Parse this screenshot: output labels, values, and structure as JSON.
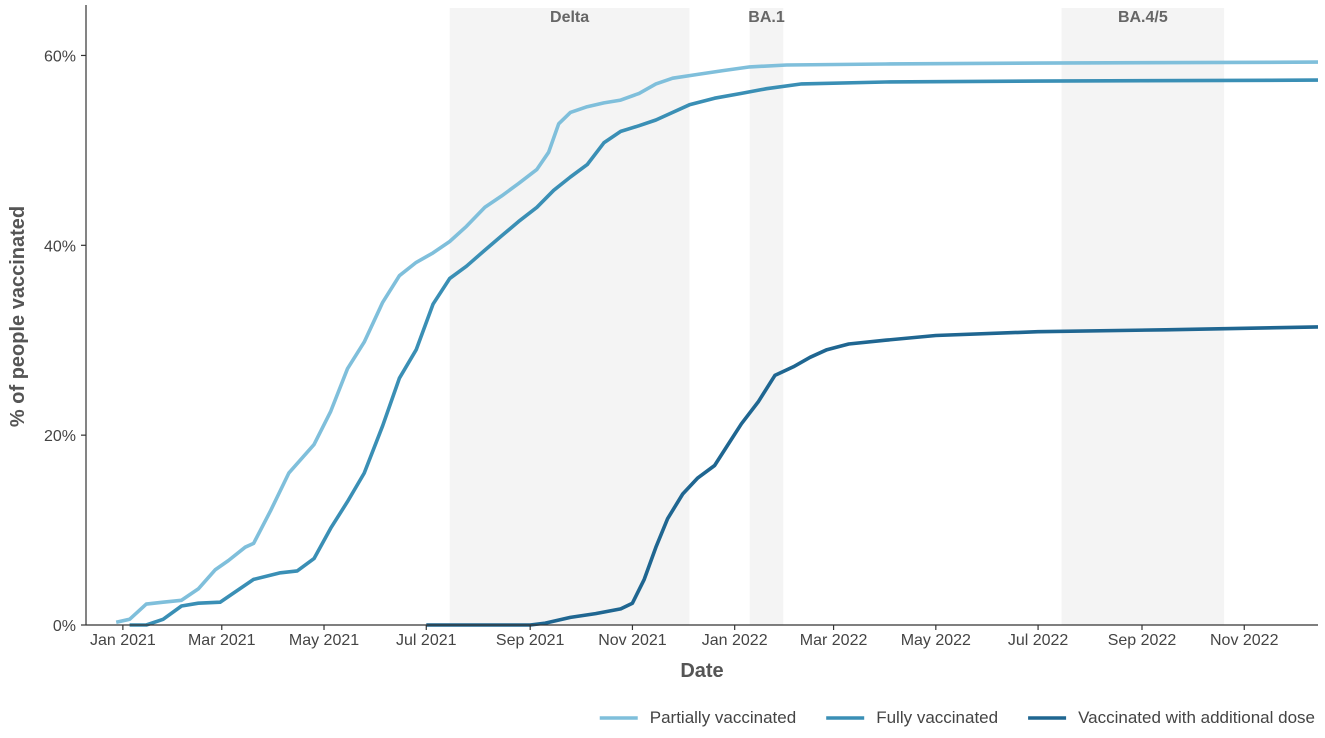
{
  "chart_data": {
    "type": "line",
    "title": "",
    "xlabel": "Date",
    "ylabel": "% of people vaccinated",
    "ylim": [
      0,
      65
    ],
    "xlim": [
      "2020-12-10",
      "2022-12-15"
    ],
    "grid": false,
    "legend_position": "bottom-right",
    "x_ticks": [
      {
        "date": "2021-01-01",
        "label": "Jan 2021"
      },
      {
        "date": "2021-03-01",
        "label": "Mar 2021"
      },
      {
        "date": "2021-05-01",
        "label": "May 2021"
      },
      {
        "date": "2021-07-01",
        "label": "Jul 2021"
      },
      {
        "date": "2021-09-01",
        "label": "Sep 2021"
      },
      {
        "date": "2021-11-01",
        "label": "Nov 2021"
      },
      {
        "date": "2022-01-01",
        "label": "Jan 2022"
      },
      {
        "date": "2022-03-01",
        "label": "Mar 2022"
      },
      {
        "date": "2022-05-01",
        "label": "May 2022"
      },
      {
        "date": "2022-07-01",
        "label": "Jul 2022"
      },
      {
        "date": "2022-09-01",
        "label": "Sep 2022"
      },
      {
        "date": "2022-11-01",
        "label": "Nov 2022"
      }
    ],
    "y_ticks": [
      {
        "value": 0,
        "label": "0%"
      },
      {
        "value": 20,
        "label": "20%"
      },
      {
        "value": 40,
        "label": "40%"
      },
      {
        "value": 60,
        "label": "60%"
      }
    ],
    "bands": [
      {
        "label": "Delta",
        "start": "2021-07-15",
        "end": "2021-12-05"
      },
      {
        "label": "BA.1",
        "start": "2022-01-10",
        "end": "2022-01-30"
      },
      {
        "label": "BA.4/5",
        "start": "2022-07-15",
        "end": "2022-10-20"
      }
    ],
    "series": [
      {
        "name": "Partially vaccinated",
        "color": "#7fbfdb",
        "points": [
          [
            "2020-12-28",
            0.3
          ],
          [
            "2021-01-05",
            0.6
          ],
          [
            "2021-01-15",
            2.2
          ],
          [
            "2021-01-25",
            2.4
          ],
          [
            "2021-02-05",
            2.6
          ],
          [
            "2021-02-15",
            3.8
          ],
          [
            "2021-02-25",
            5.8
          ],
          [
            "2021-03-05",
            6.8
          ],
          [
            "2021-03-15",
            8.2
          ],
          [
            "2021-03-20",
            8.6
          ],
          [
            "2021-03-30",
            12.0
          ],
          [
            "2021-04-10",
            16.0
          ],
          [
            "2021-04-25",
            19.0
          ],
          [
            "2021-05-05",
            22.5
          ],
          [
            "2021-05-15",
            27.0
          ],
          [
            "2021-05-25",
            29.8
          ],
          [
            "2021-06-05",
            34.0
          ],
          [
            "2021-06-15",
            36.8
          ],
          [
            "2021-06-25",
            38.2
          ],
          [
            "2021-07-05",
            39.2
          ],
          [
            "2021-07-15",
            40.4
          ],
          [
            "2021-07-25",
            42.0
          ],
          [
            "2021-08-05",
            44.0
          ],
          [
            "2021-08-15",
            45.2
          ],
          [
            "2021-08-25",
            46.5
          ],
          [
            "2021-09-05",
            48.0
          ],
          [
            "2021-09-12",
            49.8
          ],
          [
            "2021-09-18",
            52.8
          ],
          [
            "2021-09-25",
            54.0
          ],
          [
            "2021-10-05",
            54.6
          ],
          [
            "2021-10-15",
            55.0
          ],
          [
            "2021-10-25",
            55.3
          ],
          [
            "2021-11-05",
            56.0
          ],
          [
            "2021-11-15",
            57.0
          ],
          [
            "2021-11-25",
            57.6
          ],
          [
            "2021-12-10",
            58.0
          ],
          [
            "2021-12-25",
            58.4
          ],
          [
            "2022-01-10",
            58.8
          ],
          [
            "2022-02-01",
            59.0
          ],
          [
            "2022-04-01",
            59.1
          ],
          [
            "2022-07-01",
            59.2
          ],
          [
            "2022-12-15",
            59.3
          ]
        ]
      },
      {
        "name": "Fully vaccinated",
        "color": "#3a8fb5",
        "points": [
          [
            "2021-01-05",
            0.0
          ],
          [
            "2021-01-15",
            0.0
          ],
          [
            "2021-01-25",
            0.6
          ],
          [
            "2021-02-05",
            2.0
          ],
          [
            "2021-02-15",
            2.3
          ],
          [
            "2021-02-28",
            2.4
          ],
          [
            "2021-03-05",
            3.0
          ],
          [
            "2021-03-20",
            4.8
          ],
          [
            "2021-04-05",
            5.5
          ],
          [
            "2021-04-15",
            5.7
          ],
          [
            "2021-04-25",
            7.0
          ],
          [
            "2021-05-05",
            10.2
          ],
          [
            "2021-05-15",
            13.0
          ],
          [
            "2021-05-25",
            16.0
          ],
          [
            "2021-06-05",
            21.0
          ],
          [
            "2021-06-15",
            26.0
          ],
          [
            "2021-06-25",
            29.0
          ],
          [
            "2021-07-05",
            33.8
          ],
          [
            "2021-07-15",
            36.5
          ],
          [
            "2021-07-25",
            37.8
          ],
          [
            "2021-08-05",
            39.5
          ],
          [
            "2021-08-15",
            41.0
          ],
          [
            "2021-08-25",
            42.5
          ],
          [
            "2021-09-05",
            44.0
          ],
          [
            "2021-09-15",
            45.8
          ],
          [
            "2021-09-25",
            47.2
          ],
          [
            "2021-10-05",
            48.5
          ],
          [
            "2021-10-15",
            50.8
          ],
          [
            "2021-10-25",
            52.0
          ],
          [
            "2021-11-05",
            52.6
          ],
          [
            "2021-11-15",
            53.2
          ],
          [
            "2021-11-25",
            54.0
          ],
          [
            "2021-12-05",
            54.8
          ],
          [
            "2021-12-20",
            55.5
          ],
          [
            "2022-01-05",
            56.0
          ],
          [
            "2022-01-20",
            56.5
          ],
          [
            "2022-02-10",
            57.0
          ],
          [
            "2022-04-01",
            57.2
          ],
          [
            "2022-07-01",
            57.3
          ],
          [
            "2022-12-15",
            57.4
          ]
        ]
      },
      {
        "name": "Vaccinated with additional dose",
        "color": "#1f6691",
        "points": [
          [
            "2021-07-01",
            0.0
          ],
          [
            "2021-09-01",
            0.0
          ],
          [
            "2021-09-10",
            0.2
          ],
          [
            "2021-09-25",
            0.8
          ],
          [
            "2021-10-10",
            1.2
          ],
          [
            "2021-10-25",
            1.7
          ],
          [
            "2021-11-01",
            2.3
          ],
          [
            "2021-11-08",
            4.8
          ],
          [
            "2021-11-15",
            8.2
          ],
          [
            "2021-11-22",
            11.2
          ],
          [
            "2021-12-01",
            13.8
          ],
          [
            "2021-12-10",
            15.5
          ],
          [
            "2021-12-20",
            16.8
          ],
          [
            "2021-12-28",
            19.0
          ],
          [
            "2022-01-05",
            21.2
          ],
          [
            "2022-01-15",
            23.5
          ],
          [
            "2022-01-25",
            26.3
          ],
          [
            "2022-02-05",
            27.2
          ],
          [
            "2022-02-15",
            28.2
          ],
          [
            "2022-02-25",
            29.0
          ],
          [
            "2022-03-10",
            29.6
          ],
          [
            "2022-04-01",
            30.0
          ],
          [
            "2022-05-01",
            30.5
          ],
          [
            "2022-07-01",
            30.9
          ],
          [
            "2022-09-15",
            31.1
          ],
          [
            "2022-12-15",
            31.4
          ]
        ]
      }
    ]
  }
}
